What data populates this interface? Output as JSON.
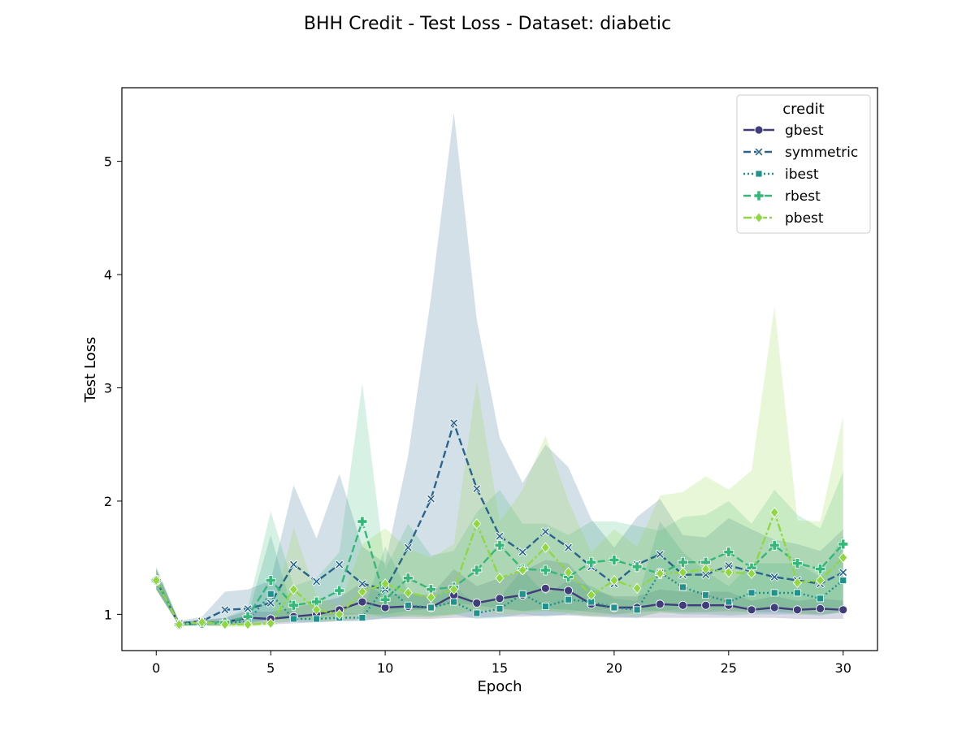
{
  "chart_data": {
    "type": "line",
    "title": "BHH Credit - Test Loss - Dataset: diabetic",
    "xlabel": "Epoch",
    "ylabel": "Test Loss",
    "xlim": [
      -1.5,
      31.5
    ],
    "ylim": [
      0.68,
      5.65
    ],
    "xticks": [
      0,
      5,
      10,
      15,
      20,
      25,
      30
    ],
    "yticks": [
      1,
      2,
      3,
      4,
      5
    ],
    "legend": {
      "title": "credit",
      "position": "top-right"
    },
    "x": [
      0,
      1,
      2,
      3,
      4,
      5,
      6,
      7,
      8,
      9,
      10,
      11,
      12,
      13,
      14,
      15,
      16,
      17,
      18,
      19,
      20,
      21,
      22,
      23,
      24,
      25,
      26,
      27,
      28,
      29,
      30
    ],
    "series": [
      {
        "name": "gbest",
        "color": "#413d7b",
        "dash": "solid",
        "marker": "circle",
        "values": [
          1.3,
          0.91,
          0.92,
          0.93,
          0.97,
          0.96,
          0.98,
          1.0,
          1.04,
          1.11,
          1.06,
          1.07,
          1.06,
          1.17,
          1.1,
          1.14,
          1.17,
          1.23,
          1.21,
          1.09,
          1.06,
          1.06,
          1.09,
          1.08,
          1.08,
          1.08,
          1.04,
          1.06,
          1.04,
          1.05,
          1.04
        ],
        "lower": [
          1.22,
          0.9,
          0.9,
          0.9,
          0.91,
          0.91,
          0.92,
          0.93,
          0.94,
          0.95,
          0.96,
          0.96,
          0.96,
          0.97,
          0.97,
          0.98,
          0.98,
          0.99,
          0.99,
          0.98,
          0.97,
          0.97,
          0.97,
          0.97,
          0.97,
          0.97,
          0.97,
          0.97,
          0.96,
          0.96,
          0.96
        ],
        "upper": [
          1.4,
          0.93,
          0.95,
          0.97,
          1.03,
          1.02,
          1.06,
          1.1,
          1.15,
          1.28,
          1.17,
          1.18,
          1.17,
          1.4,
          1.25,
          1.32,
          1.38,
          1.48,
          1.45,
          1.22,
          1.16,
          1.16,
          1.22,
          1.2,
          1.2,
          1.2,
          1.12,
          1.16,
          1.12,
          1.14,
          1.12
        ]
      },
      {
        "name": "symmetric",
        "color": "#2a648c",
        "dash": "dashed",
        "marker": "x",
        "values": [
          1.3,
          0.92,
          0.94,
          1.04,
          1.05,
          1.1,
          1.44,
          1.29,
          1.44,
          1.27,
          1.22,
          1.59,
          2.02,
          2.69,
          2.11,
          1.69,
          1.55,
          1.73,
          1.59,
          1.42,
          1.27,
          1.44,
          1.53,
          1.35,
          1.35,
          1.43,
          1.38,
          1.33,
          1.3,
          1.27,
          1.37
        ],
        "lower": [
          1.22,
          0.9,
          0.91,
          0.92,
          0.93,
          0.95,
          0.98,
          0.98,
          1.0,
          1.0,
          1.0,
          1.03,
          1.05,
          1.1,
          1.08,
          1.05,
          1.03,
          1.05,
          1.04,
          1.02,
          1.0,
          1.02,
          1.03,
          1.02,
          1.02,
          1.03,
          1.02,
          1.02,
          1.01,
          1.0,
          1.02
        ],
        "upper": [
          1.42,
          0.94,
          0.98,
          1.2,
          1.22,
          1.3,
          2.14,
          1.67,
          2.24,
          1.6,
          1.45,
          2.4,
          3.8,
          5.43,
          3.6,
          2.56,
          2.16,
          2.5,
          2.3,
          1.84,
          1.59,
          1.86,
          2.02,
          1.7,
          1.68,
          1.85,
          1.75,
          1.66,
          1.62,
          1.56,
          1.75
        ]
      },
      {
        "name": "ibest",
        "color": "#21918c",
        "dash": "dotted",
        "marker": "square",
        "values": [
          1.3,
          0.91,
          0.92,
          0.92,
          0.94,
          1.18,
          0.96,
          0.96,
          0.97,
          0.97,
          1.25,
          1.08,
          1.06,
          1.11,
          1.01,
          1.05,
          1.18,
          1.07,
          1.13,
          1.11,
          1.06,
          1.04,
          1.37,
          1.24,
          1.17,
          1.11,
          1.19,
          1.19,
          1.19,
          1.14,
          1.3
        ],
        "lower": [
          1.22,
          0.9,
          0.9,
          0.9,
          0.91,
          0.93,
          0.93,
          0.93,
          0.94,
          0.94,
          0.97,
          0.98,
          0.98,
          1.0,
          0.96,
          0.97,
          1.0,
          0.98,
          1.0,
          0.99,
          0.98,
          0.97,
          1.02,
          1.0,
          1.0,
          0.99,
          1.0,
          1.0,
          1.0,
          0.99,
          1.02
        ],
        "upper": [
          1.4,
          0.93,
          0.94,
          0.95,
          0.99,
          1.7,
          1.0,
          1.0,
          1.01,
          1.01,
          1.6,
          1.2,
          1.15,
          1.25,
          1.08,
          1.15,
          1.4,
          1.17,
          1.3,
          1.25,
          1.14,
          1.12,
          1.82,
          1.55,
          1.38,
          1.25,
          1.45,
          1.45,
          1.45,
          1.33,
          1.7
        ]
      },
      {
        "name": "rbest",
        "color": "#35b779",
        "dash": "dashed",
        "marker": "plus",
        "values": [
          1.3,
          0.91,
          0.92,
          0.93,
          0.98,
          1.3,
          1.08,
          1.11,
          1.21,
          1.82,
          1.13,
          1.32,
          1.22,
          1.24,
          1.39,
          1.61,
          1.4,
          1.39,
          1.33,
          1.46,
          1.48,
          1.42,
          1.36,
          1.46,
          1.46,
          1.55,
          1.41,
          1.61,
          1.45,
          1.4,
          1.62
        ],
        "lower": [
          1.22,
          0.9,
          0.9,
          0.9,
          0.92,
          0.96,
          0.95,
          0.96,
          0.98,
          1.02,
          0.97,
          1.0,
          0.99,
          1.0,
          1.03,
          1.06,
          1.03,
          1.03,
          1.02,
          1.04,
          1.05,
          1.04,
          1.03,
          1.05,
          1.05,
          1.06,
          1.04,
          1.07,
          1.05,
          1.04,
          1.07
        ],
        "upper": [
          1.4,
          0.93,
          0.95,
          0.97,
          1.06,
          1.91,
          1.25,
          1.32,
          1.55,
          3.04,
          1.4,
          1.8,
          1.52,
          1.56,
          1.9,
          2.1,
          1.8,
          1.8,
          1.7,
          1.82,
          1.82,
          1.78,
          1.74,
          1.86,
          1.88,
          2.0,
          1.8,
          2.1,
          1.88,
          1.76,
          2.26
        ]
      },
      {
        "name": "pbest",
        "color": "#90d743",
        "dash": "dashdot",
        "marker": "diamond",
        "values": [
          1.3,
          0.91,
          0.93,
          0.91,
          0.91,
          0.92,
          1.22,
          1.04,
          1.0,
          1.2,
          1.27,
          1.19,
          1.15,
          1.22,
          1.8,
          1.32,
          1.39,
          1.59,
          1.37,
          1.17,
          1.3,
          1.23,
          1.36,
          1.37,
          1.4,
          1.37,
          1.36,
          1.9,
          1.28,
          1.3,
          1.5
        ],
        "lower": [
          1.22,
          0.9,
          0.9,
          0.89,
          0.89,
          0.9,
          0.96,
          0.94,
          0.94,
          0.97,
          0.99,
          0.98,
          0.97,
          0.99,
          1.04,
          1.0,
          1.01,
          1.03,
          1.01,
          0.98,
          1.0,
          0.99,
          1.01,
          1.01,
          1.02,
          1.01,
          1.01,
          1.05,
          1.0,
          1.0,
          1.02
        ],
        "upper": [
          1.4,
          0.93,
          0.96,
          0.93,
          0.93,
          0.95,
          1.77,
          1.16,
          1.08,
          1.62,
          1.76,
          1.58,
          1.5,
          1.62,
          3.06,
          1.82,
          2.1,
          2.58,
          2.0,
          1.55,
          1.75,
          1.6,
          2.05,
          2.08,
          2.22,
          2.1,
          2.27,
          3.72,
          1.83,
          1.82,
          2.75
        ]
      }
    ]
  }
}
